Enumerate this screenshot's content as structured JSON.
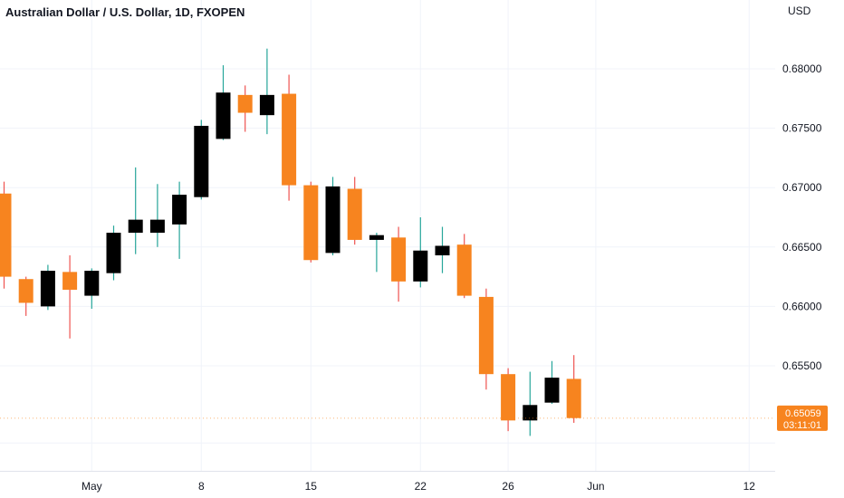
{
  "chart_data": {
    "type": "candlestick",
    "title": "Australian Dollar / U.S. Dollar, 1D, FXOPEN",
    "currency": "USD",
    "y_ticks": [
      "0.68000",
      "0.67500",
      "0.67000",
      "0.66500",
      "0.66000",
      "0.65500"
    ],
    "ylim": [
      0.6475,
      0.6845
    ],
    "x_ticks": [
      {
        "label": "May",
        "index": 4
      },
      {
        "label": "8",
        "index": 9
      },
      {
        "label": "15",
        "index": 14
      },
      {
        "label": "22",
        "index": 19
      },
      {
        "label": "26",
        "index": 23
      },
      {
        "label": "Jun",
        "index": 27
      },
      {
        "label": "12",
        "index": 34
      }
    ],
    "last_price": {
      "value": "0.65059",
      "countdown": "03:11:01",
      "price": 0.65059
    },
    "grid": true,
    "colors": {
      "up": "#000000",
      "down": "#f7841f",
      "up_wick": "#26a69a",
      "down_wick": "#ef5350",
      "grid": "#f0f3fa",
      "badge": "#f7841f"
    },
    "candles": [
      {
        "o": 0.6695,
        "h": 0.6705,
        "l": 0.6615,
        "c": 0.6625
      },
      {
        "o": 0.6623,
        "h": 0.6625,
        "l": 0.6592,
        "c": 0.6603
      },
      {
        "o": 0.66,
        "h": 0.6635,
        "l": 0.6597,
        "c": 0.663
      },
      {
        "o": 0.6629,
        "h": 0.6643,
        "l": 0.6573,
        "c": 0.6614
      },
      {
        "o": 0.6609,
        "h": 0.6632,
        "l": 0.6598,
        "c": 0.663
      },
      {
        "o": 0.6628,
        "h": 0.6668,
        "l": 0.6622,
        "c": 0.6662
      },
      {
        "o": 0.6662,
        "h": 0.6717,
        "l": 0.6644,
        "c": 0.6673
      },
      {
        "o": 0.6662,
        "h": 0.6703,
        "l": 0.665,
        "c": 0.6673
      },
      {
        "o": 0.6669,
        "h": 0.6705,
        "l": 0.664,
        "c": 0.6694
      },
      {
        "o": 0.6692,
        "h": 0.6757,
        "l": 0.669,
        "c": 0.6752
      },
      {
        "o": 0.6741,
        "h": 0.6803,
        "l": 0.674,
        "c": 0.678
      },
      {
        "o": 0.6778,
        "h": 0.6786,
        "l": 0.6747,
        "c": 0.6763
      },
      {
        "o": 0.6761,
        "h": 0.6817,
        "l": 0.6745,
        "c": 0.6778
      },
      {
        "o": 0.6779,
        "h": 0.6795,
        "l": 0.6689,
        "c": 0.6702
      },
      {
        "o": 0.6702,
        "h": 0.6705,
        "l": 0.6637,
        "c": 0.6639
      },
      {
        "o": 0.6645,
        "h": 0.6709,
        "l": 0.6643,
        "c": 0.6701
      },
      {
        "o": 0.6699,
        "h": 0.6709,
        "l": 0.6652,
        "c": 0.6656
      },
      {
        "o": 0.6656,
        "h": 0.6662,
        "l": 0.6629,
        "c": 0.666
      },
      {
        "o": 0.6658,
        "h": 0.6667,
        "l": 0.6604,
        "c": 0.6621
      },
      {
        "o": 0.6621,
        "h": 0.6675,
        "l": 0.6616,
        "c": 0.6647
      },
      {
        "o": 0.6643,
        "h": 0.6667,
        "l": 0.6628,
        "c": 0.6651
      },
      {
        "o": 0.6652,
        "h": 0.6661,
        "l": 0.6607,
        "c": 0.6609
      },
      {
        "o": 0.6608,
        "h": 0.6615,
        "l": 0.653,
        "c": 0.6543
      },
      {
        "o": 0.6543,
        "h": 0.6548,
        "l": 0.6495,
        "c": 0.6504
      },
      {
        "o": 0.6504,
        "h": 0.6545,
        "l": 0.6491,
        "c": 0.6517
      },
      {
        "o": 0.6519,
        "h": 0.6554,
        "l": 0.6518,
        "c": 0.654
      },
      {
        "o": 0.6539,
        "h": 0.6559,
        "l": 0.6502,
        "c": 0.6506
      }
    ]
  }
}
